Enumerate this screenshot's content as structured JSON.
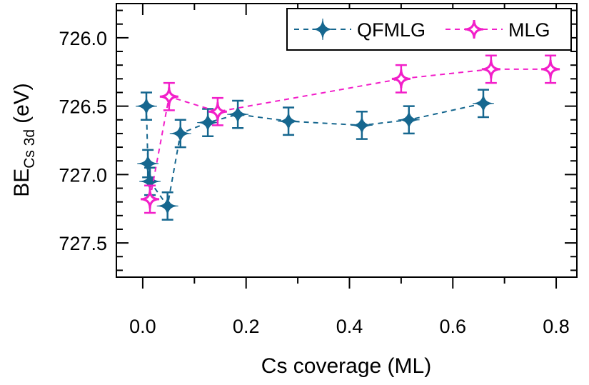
{
  "chart_data": {
    "type": "scatter-line",
    "x_label": "Cs coverage (ML)",
    "y_label": "BE",
    "y_label_subscript": "Cs 3d",
    "y_label_unit": "(eV)",
    "xlim": [
      -0.051,
      0.84
    ],
    "xticks": [
      {
        "value": 0,
        "label": "0.0"
      },
      0.2,
      0.4,
      0.6,
      0.8
    ],
    "xminorticks": [
      0.1,
      0.3,
      0.5,
      0.7
    ],
    "ylim": [
      727.75,
      725.75
    ],
    "yticks": [
      {
        "value": 726,
        "label": "726.0"
      },
      726.5,
      {
        "value": 727,
        "label": "727.0"
      },
      727.5
    ],
    "yminorticks": [
      725.8,
      725.9,
      726.1,
      726.2,
      726.3,
      726.4,
      726.6,
      726.7,
      726.8,
      726.9,
      727.1,
      727.2,
      727.3,
      727.4,
      727.6,
      727.7
    ],
    "legend": "upper right",
    "series": [
      {
        "name": "QFMLG",
        "color": "#16678f",
        "filled": true,
        "x": [
          0.007,
          0.01,
          0.014,
          0.048,
          0.073,
          0.126,
          0.184,
          0.282,
          0.424,
          0.515,
          0.659
        ],
        "values": [
          726.5,
          726.92,
          727.05,
          727.23,
          726.7,
          726.62,
          726.56,
          726.61,
          726.64,
          726.6,
          726.48
        ],
        "errors": [
          0.1,
          0.1,
          0.1,
          0.1,
          0.1,
          0.1,
          0.1,
          0.1,
          0.1,
          0.1,
          0.1
        ]
      },
      {
        "name": "MLG",
        "color": "#f21fc9",
        "filled": false,
        "x": [
          0.014,
          0.051,
          0.145,
          0.5,
          0.674,
          0.789
        ],
        "values": [
          727.18,
          726.43,
          726.54,
          726.3,
          726.23,
          726.23
        ],
        "errors": [
          0.1,
          0.1,
          0.1,
          0.1,
          0.1,
          0.1
        ]
      }
    ]
  }
}
